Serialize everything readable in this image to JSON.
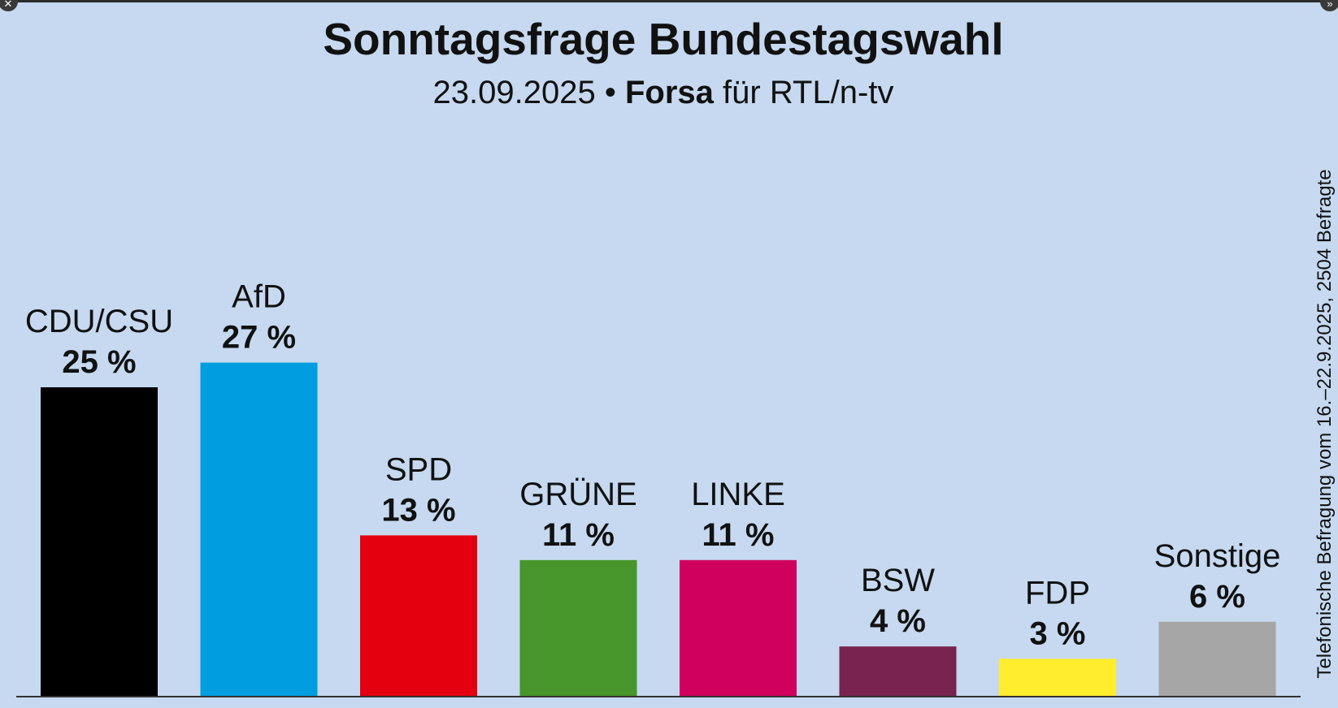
{
  "header": {
    "title": "Sonntagsfrage Bundestagswahl",
    "date": "23.09.2025",
    "separator": "•",
    "pollster": "Forsa",
    "client": "für RTL/n-tv"
  },
  "side_note": "Telefonische Befragung vom 16.–22.9.2025, 2504 Befragte",
  "controls": {
    "close_icon": "close-icon",
    "expand_icon": "double-chevron-right-icon"
  },
  "colors": {
    "background": "#c6d9f0",
    "CDU/CSU": "#000000",
    "AfD": "#009ee0",
    "SPD": "#e3000f",
    "GRÜNE": "#46962b",
    "LINKE": "#d0005f",
    "BSW": "#792350",
    "FDP": "#ffed2e",
    "Sonstige": "#a6a6a6"
  },
  "chart_data": {
    "type": "bar",
    "title": "Sonntagsfrage Bundestagswahl",
    "categories": [
      "CDU/CSU",
      "AfD",
      "SPD",
      "GRÜNE",
      "LINKE",
      "BSW",
      "FDP",
      "Sonstige"
    ],
    "values": [
      25,
      27,
      13,
      11,
      11,
      4,
      3,
      6
    ],
    "value_labels": [
      "25 %",
      "27 %",
      "13 %",
      "11 %",
      "11 %",
      "4 %",
      "3 %",
      "6 %"
    ],
    "unit": "%",
    "grid": false,
    "legend": "none"
  }
}
